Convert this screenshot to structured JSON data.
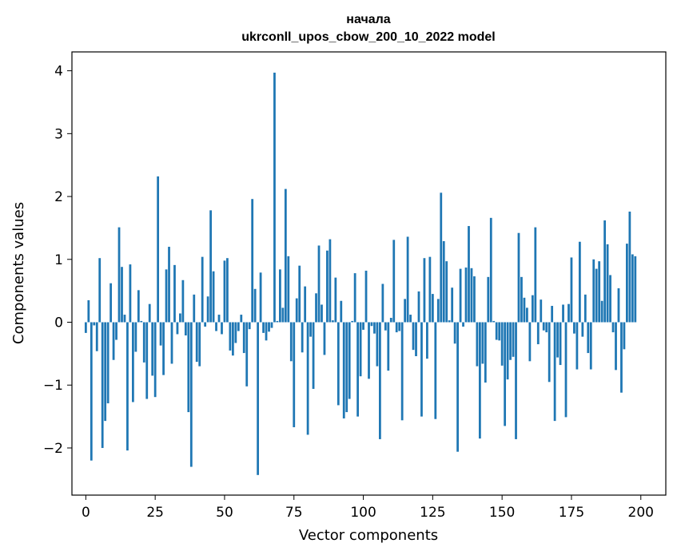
{
  "chart_data": {
    "type": "bar",
    "title_line1": "начала",
    "title_line2": "ukrconll_upos_cbow_200_10_2022 model",
    "xlabel": "Vector components",
    "ylabel": "Components values",
    "xlim": [
      -5,
      209
    ],
    "ylim": [
      -2.75,
      4.3
    ],
    "xticks": [
      0,
      25,
      50,
      75,
      100,
      125,
      150,
      175,
      200
    ],
    "yticks": [
      -2,
      -1,
      0,
      1,
      2,
      3,
      4
    ],
    "xtick_labels": [
      "0",
      "25",
      "50",
      "75",
      "100",
      "125",
      "150",
      "175",
      "200"
    ],
    "ytick_labels": [
      "−2",
      "−1",
      "0",
      "1",
      "2",
      "3",
      "4"
    ],
    "bar_color": "#1f77b4",
    "grid": false,
    "values": [
      -0.17,
      0.35,
      -2.2,
      -0.05,
      -0.46,
      1.02,
      -2.0,
      -1.57,
      -1.29,
      0.62,
      -0.6,
      -0.28,
      1.51,
      0.88,
      0.12,
      -2.04,
      0.92,
      -1.27,
      -0.47,
      0.51,
      0.02,
      -0.64,
      -1.22,
      0.29,
      -0.85,
      -1.19,
      2.32,
      -0.37,
      -0.84,
      0.84,
      1.2,
      -0.66,
      0.91,
      -0.19,
      0.14,
      0.67,
      -0.21,
      -1.43,
      -2.3,
      0.44,
      -0.63,
      -0.7,
      1.04,
      -0.07,
      0.41,
      1.78,
      0.81,
      -0.14,
      0.12,
      -0.19,
      0.98,
      1.02,
      -0.45,
      -0.53,
      -0.33,
      -0.14,
      0.12,
      -0.49,
      -1.02,
      -0.11,
      1.96,
      0.53,
      -2.43,
      0.79,
      -0.17,
      -0.29,
      -0.15,
      -0.09,
      3.97,
      0.02,
      0.84,
      0.23,
      2.12,
      1.05,
      -0.62,
      -1.67,
      0.38,
      0.9,
      -0.48,
      0.57,
      -1.79,
      -0.23,
      -1.06,
      0.46,
      1.22,
      0.28,
      -0.52,
      1.14,
      1.32,
      0.03,
      0.71,
      -1.32,
      0.34,
      -1.53,
      -1.43,
      -1.22,
      0.02,
      0.78,
      -1.5,
      -0.86,
      -0.12,
      0.82,
      -0.9,
      -0.06,
      -0.18,
      -0.7,
      -1.86,
      0.61,
      -0.13,
      -0.77,
      0.07,
      1.31,
      -0.16,
      -0.14,
      -1.56,
      0.37,
      1.36,
      0.12,
      -0.44,
      -0.54,
      0.49,
      -1.5,
      1.02,
      -0.58,
      1.04,
      0.45,
      -1.54,
      0.37,
      2.06,
      1.29,
      0.97,
      0.03,
      0.55,
      -0.34,
      -2.06,
      0.85,
      -0.07,
      0.87,
      1.53,
      0.86,
      0.73,
      -0.7,
      -1.85,
      -0.66,
      -0.96,
      0.72,
      1.66,
      0.02,
      -0.28,
      -0.29,
      -0.69,
      -1.65,
      -0.91,
      -0.6,
      -0.55,
      -1.86,
      1.42,
      0.72,
      0.39,
      0.23,
      -0.62,
      0.43,
      1.51,
      -0.35,
      0.36,
      -0.13,
      -0.16,
      -0.95,
      0.26,
      -1.57,
      -0.56,
      -0.68,
      0.28,
      -1.51,
      0.29,
      1.03,
      -0.18,
      -0.75,
      1.28,
      -0.23,
      0.44,
      -0.49,
      -0.75,
      1.0,
      0.85,
      0.97,
      0.34,
      1.62,
      1.24,
      0.75,
      -0.16,
      -0.76,
      0.54,
      -1.12,
      -0.43,
      1.25,
      1.76,
      1.08,
      1.05
    ]
  }
}
